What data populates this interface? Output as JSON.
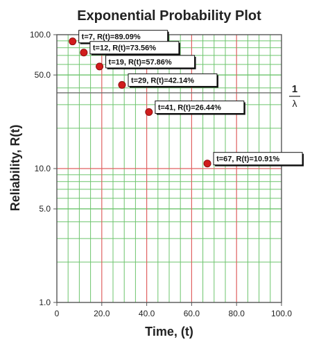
{
  "chart_data": {
    "type": "scatter",
    "title": "Exponential Probability Plot",
    "xlabel": "Time, (t)",
    "ylabel": "Reliability, R(t)",
    "xlim": [
      0,
      100
    ],
    "ylim": [
      1,
      100
    ],
    "y_scale": "log",
    "x_ticks": [
      {
        "value": 0,
        "label": "0"
      },
      {
        "value": 20,
        "label": "20.0"
      },
      {
        "value": 40,
        "label": "40.0"
      },
      {
        "value": 60,
        "label": "60.0"
      },
      {
        "value": 80,
        "label": "80.0"
      },
      {
        "value": 100,
        "label": "100.0"
      }
    ],
    "y_ticks": [
      {
        "value": 100,
        "label": "100.0"
      },
      {
        "value": 50,
        "label": "50.0"
      },
      {
        "value": 10,
        "label": "10.0"
      },
      {
        "value": 5,
        "label": "5.0"
      },
      {
        "value": 1,
        "label": "1.0"
      }
    ],
    "grid": true,
    "reference_line": {
      "y": 36.79,
      "label_top": "1",
      "label_bottom": "λ"
    },
    "points": [
      {
        "x": 7,
        "y": 89.09,
        "label": "t=7, R(t)=89.09%"
      },
      {
        "x": 12,
        "y": 73.56,
        "label": "t=12, R(t)=73.56%"
      },
      {
        "x": 19,
        "y": 57.86,
        "label": "t=19, R(t)=57.86%"
      },
      {
        "x": 29,
        "y": 42.14,
        "label": "t=29, R(t)=42.14%"
      },
      {
        "x": 41,
        "y": 26.44,
        "label": "t=41, R(t)=26.44%"
      },
      {
        "x": 67,
        "y": 10.91,
        "label": "t=67, R(t)=10.91%"
      }
    ],
    "colors": {
      "grid_minor": "#6cc46c",
      "grid_major": "#e06060",
      "axis": "#555555",
      "reference_line": "#6b6b6b",
      "point": "#d11d1d",
      "point_outline": "#8e0f0f",
      "label_border": "#111111"
    }
  }
}
